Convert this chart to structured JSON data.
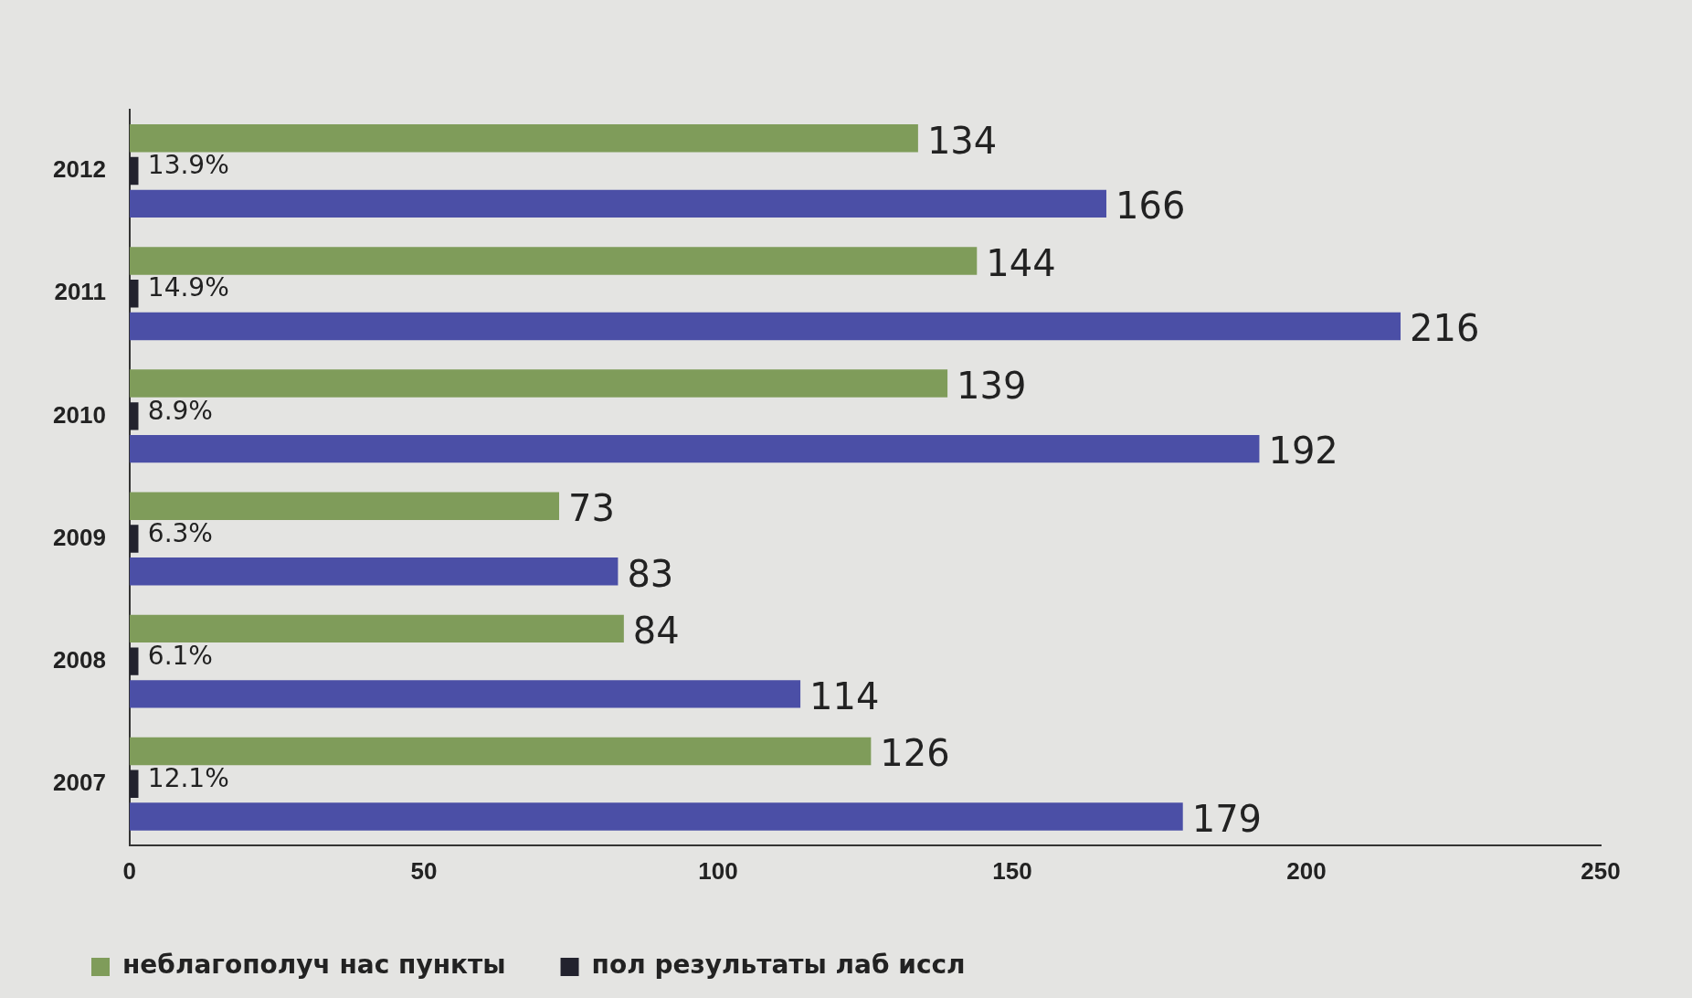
{
  "chart_data": {
    "type": "bar",
    "orientation": "horizontal",
    "categories": [
      "2012",
      "2011",
      "2010",
      "2009",
      "2008",
      "2007"
    ],
    "series": [
      {
        "name": "неблагополуч нас пункты",
        "color": "#7f9c5a",
        "values": [
          134,
          144,
          139,
          73,
          84,
          126
        ],
        "value_labels": [
          "134",
          "144",
          "139",
          "73",
          "84",
          "126"
        ]
      },
      {
        "name": "пол результаты лаб иссл",
        "color": "#22222e",
        "values": [
          1.5,
          1.5,
          1.5,
          1.5,
          1.5,
          1.5
        ]
      },
      {
        "color": "#4b4fa6",
        "values": [
          166,
          216,
          192,
          83,
          114,
          179
        ],
        "value_labels": [
          "166",
          "216",
          "192",
          "83",
          "114",
          "179"
        ]
      }
    ],
    "annotations": [
      "13.9%",
      "14.9%",
      "8.9%",
      "6.3%",
      "6.1%",
      "12.1%"
    ],
    "xlim": [
      0,
      250
    ],
    "xticks": [
      0,
      50,
      100,
      150,
      200,
      250
    ],
    "grid": false,
    "legend": "bottom"
  }
}
